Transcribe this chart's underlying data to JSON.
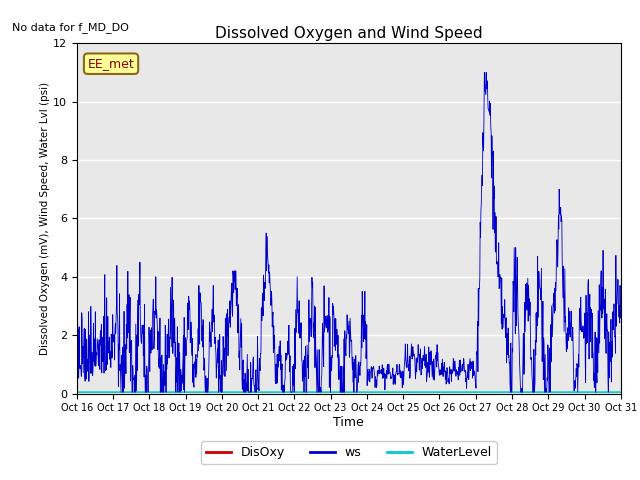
{
  "title": "Dissolved Oxygen and Wind Speed",
  "xlabel": "Time",
  "ylabel": "Dissolved Oxygen (mV), Wind Speed, Water Lvl (psi)",
  "ylim": [
    0,
    12
  ],
  "yticks": [
    0,
    2,
    4,
    6,
    8,
    10,
    12
  ],
  "xtick_labels": [
    "Oct 16",
    "Oct 17",
    "Oct 18",
    "Oct 19",
    "Oct 20",
    "Oct 21",
    "Oct 22",
    "Oct 23",
    "Oct 24",
    "Oct 25",
    "Oct 26",
    "Oct 27",
    "Oct 28",
    "Oct 29",
    "Oct 30",
    "Oct 31"
  ],
  "no_data_text": "No data for f_MD_DO",
  "annotation_text": "EE_met",
  "ws_color": "#0000cc",
  "disoxy_color": "#cc0000",
  "waterlevel_color": "#00cccc",
  "bg_color": "#e8e8e8",
  "legend_labels": [
    "DisOxy",
    "ws",
    "WaterLevel"
  ],
  "seed": 42
}
